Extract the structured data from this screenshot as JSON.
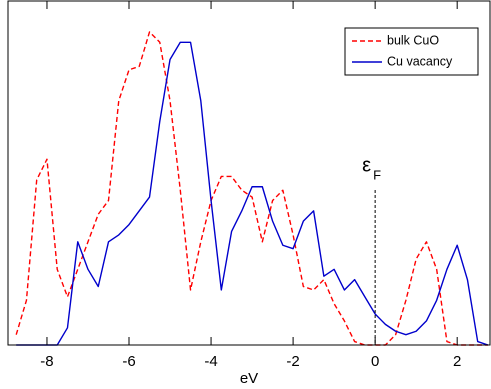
{
  "chart_data": {
    "type": "line",
    "x_label": "eV",
    "x": [
      -8.75,
      -8.5,
      -8.25,
      -8,
      -7.75,
      -7.5,
      -7.25,
      -7,
      -6.75,
      -6.5,
      -6.25,
      -6,
      -5.75,
      -5.5,
      -5.25,
      -5,
      -4.75,
      -4.5,
      -4.25,
      -4,
      -3.75,
      -3.5,
      -3.25,
      -3,
      -2.75,
      -2.5,
      -2.25,
      -2,
      -1.75,
      -1.5,
      -1.25,
      -1,
      -0.75,
      -0.5,
      -0.25,
      0,
      0.25,
      0.5,
      0.75,
      1,
      1.25,
      1.5,
      1.75,
      2,
      2.25,
      2.5,
      2.75
    ],
    "series": [
      {
        "name": "bulk CuO",
        "color": "#ff0000",
        "dash": true,
        "values": [
          3,
          13,
          48,
          54,
          22,
          14,
          22,
          30,
          38,
          42,
          71,
          80,
          81,
          91,
          88,
          71,
          45,
          16,
          30,
          42,
          49,
          49,
          45,
          43,
          30,
          42,
          45,
          32,
          17,
          16,
          19,
          12,
          7,
          1,
          0,
          0,
          0,
          3,
          13,
          25,
          30,
          22,
          1,
          0,
          0,
          0,
          0
        ]
      },
      {
        "name": "Cu vacancy",
        "color": "#0000cc",
        "dash": false,
        "values": [
          0,
          0,
          0,
          0,
          0,
          5,
          30,
          22,
          17,
          30,
          32,
          35,
          39,
          43,
          65,
          83,
          88,
          88,
          71,
          42,
          16,
          33,
          39,
          46,
          46,
          36,
          29,
          28,
          36,
          39,
          20,
          22,
          16,
          19,
          14,
          9,
          6,
          4,
          3,
          4,
          7,
          13,
          22,
          29,
          19,
          1,
          0
        ]
      }
    ],
    "xlim": [
      -8.95,
      2.8
    ],
    "xticks": [
      -8,
      -6,
      -4,
      -2,
      0,
      2
    ],
    "ylim": [
      0,
      100
    ],
    "fermi_level": {
      "x": 0,
      "symbol": "ε",
      "subscript": "F"
    },
    "legend": "top-right"
  }
}
